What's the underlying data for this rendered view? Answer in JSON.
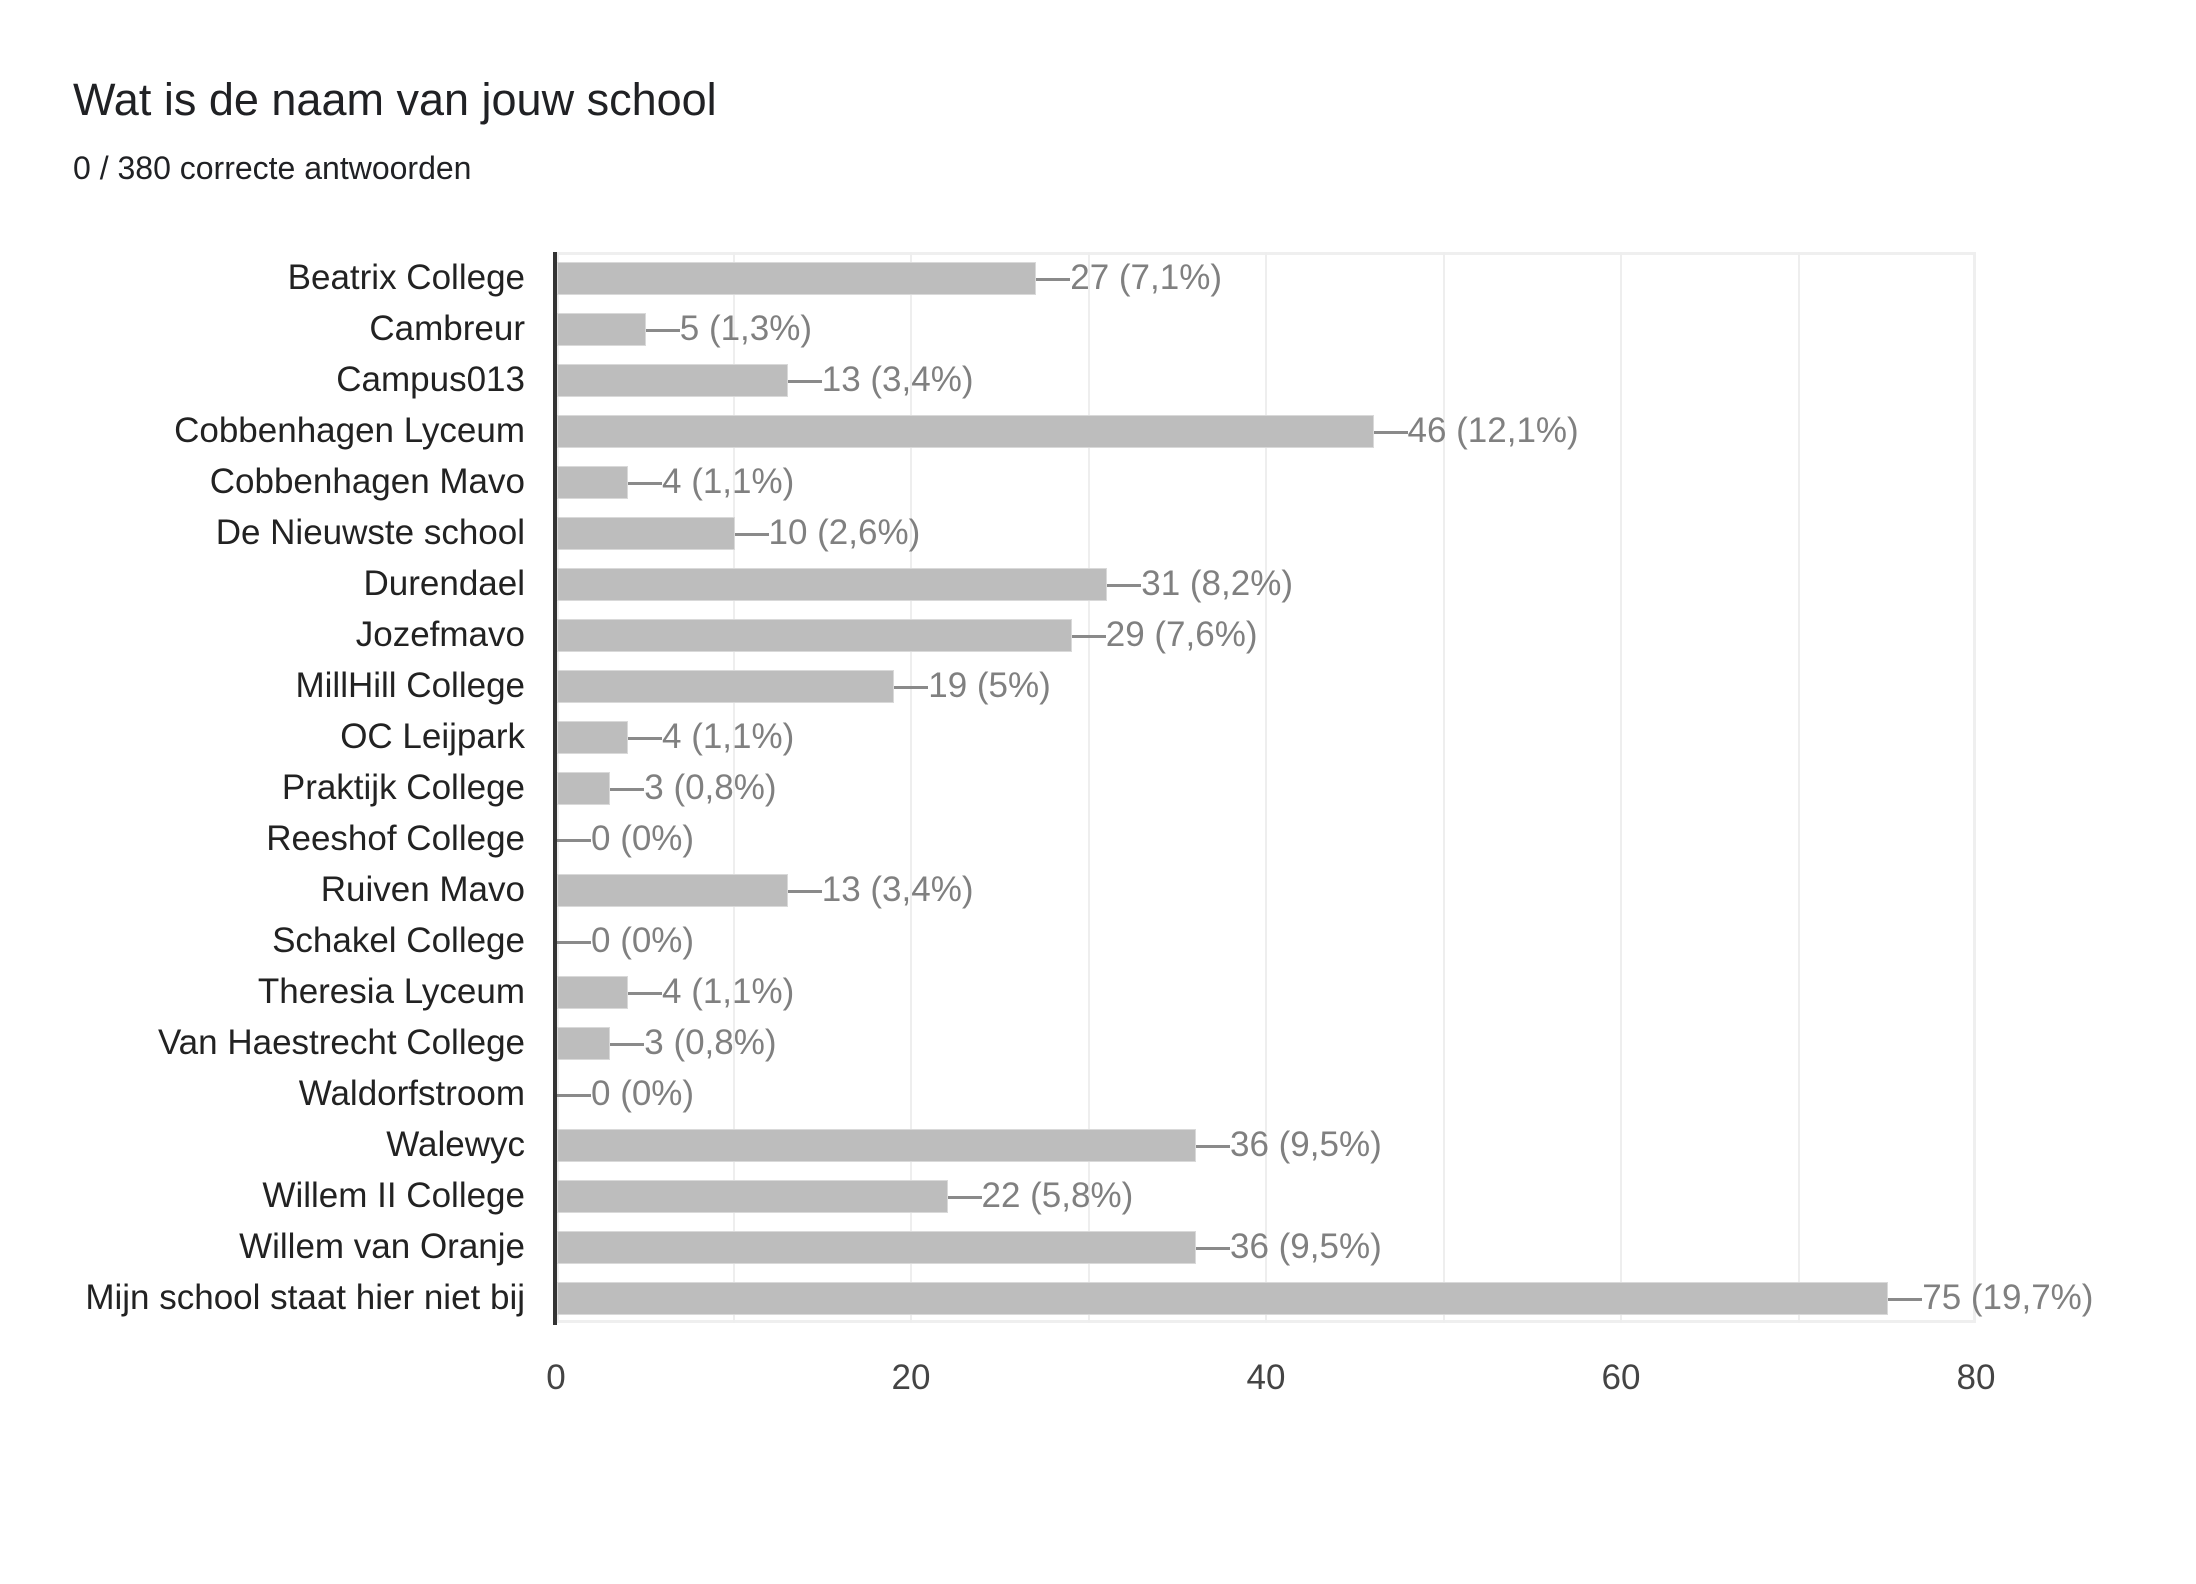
{
  "header": {
    "title": "Wat is de naam van jouw school",
    "subtitle": "0 / 380 correcte antwoorden"
  },
  "colors": {
    "bar": "#bdbdbd",
    "axis": "#333333",
    "gridline": "#eeeeee",
    "value_label": "#808080",
    "category_label": "#222222"
  },
  "chart_data": {
    "type": "bar",
    "orientation": "horizontal",
    "title": "Wat is de naam van jouw school",
    "subtitle": "0 / 380 correcte antwoorden",
    "xlabel": "",
    "ylabel": "",
    "xlim": [
      0,
      80
    ],
    "x_ticks": [
      "0",
      "20",
      "40",
      "60",
      "80"
    ],
    "grid": true,
    "legend": null,
    "categories": [
      "Beatrix College",
      "Cambreur",
      "Campus013",
      "Cobbenhagen Lyceum",
      "Cobbenhagen Mavo",
      "De Nieuwste school",
      "Durendael",
      "Jozefmavo",
      "MillHill College",
      "OC Leijpark",
      "Praktijk College",
      "Reeshof College",
      "Ruiven Mavo",
      "Schakel College",
      "Theresia Lyceum",
      "Van Haestrecht College",
      "Waldorfstroom",
      "Walewyc",
      "Willem II College",
      "Willem van Oranje",
      "Mijn school staat hier niet bij"
    ],
    "values": [
      27,
      5,
      13,
      46,
      4,
      10,
      31,
      29,
      19,
      4,
      3,
      0,
      13,
      0,
      4,
      3,
      0,
      36,
      22,
      36,
      75
    ],
    "data_labels": [
      "27 (7,1%)",
      "5 (1,3%)",
      "13 (3,4%)",
      "46 (12,1%)",
      "4 (1,1%)",
      "10 (2,6%)",
      "31 (8,2%)",
      "29 (7,6%)",
      "19 (5%)",
      "4 (1,1%)",
      "3 (0,8%)",
      "0 (0%)",
      "13 (3,4%)",
      "0 (0%)",
      "4 (1,1%)",
      "3 (0,8%)",
      "0 (0%)",
      "36 (9,5%)",
      "22 (5,8%)",
      "36 (9,5%)",
      "75 (19,7%)"
    ]
  }
}
